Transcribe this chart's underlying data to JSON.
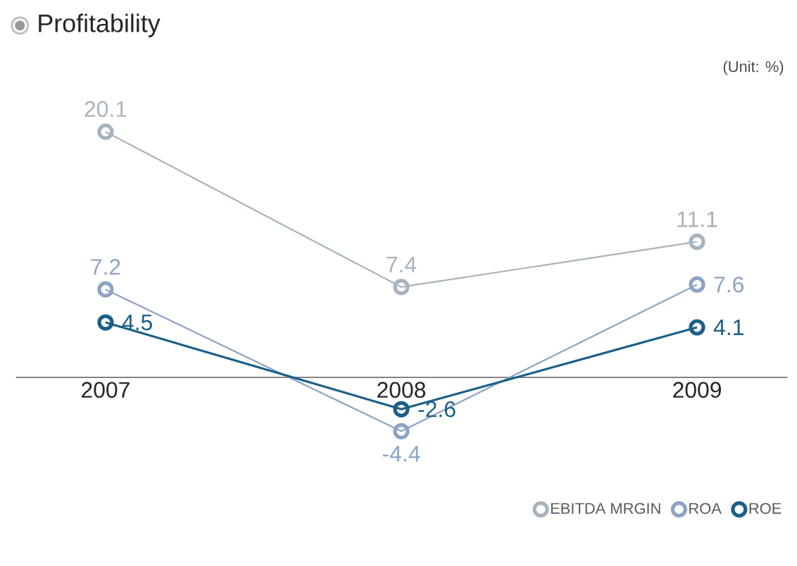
{
  "chart_data": {
    "type": "line",
    "title": "Profitability",
    "annotations": [
      "(Unit: %)"
    ],
    "categories": [
      "2007",
      "2008",
      "2009"
    ],
    "series": [
      {
        "name": "EBITDA MRGIN",
        "color": "#a7b3bd",
        "values": [
          20.1,
          7.4,
          11.1
        ]
      },
      {
        "name": "ROA",
        "color": "#8ca3c3",
        "values": [
          7.2,
          -4.4,
          7.6
        ]
      },
      {
        "name": "ROE",
        "color": "#1b5f88",
        "values": [
          4.5,
          -2.6,
          4.1
        ]
      }
    ],
    "data_labels": true,
    "marker": "circle",
    "line_style": "solid",
    "legend": "bottom right"
  }
}
